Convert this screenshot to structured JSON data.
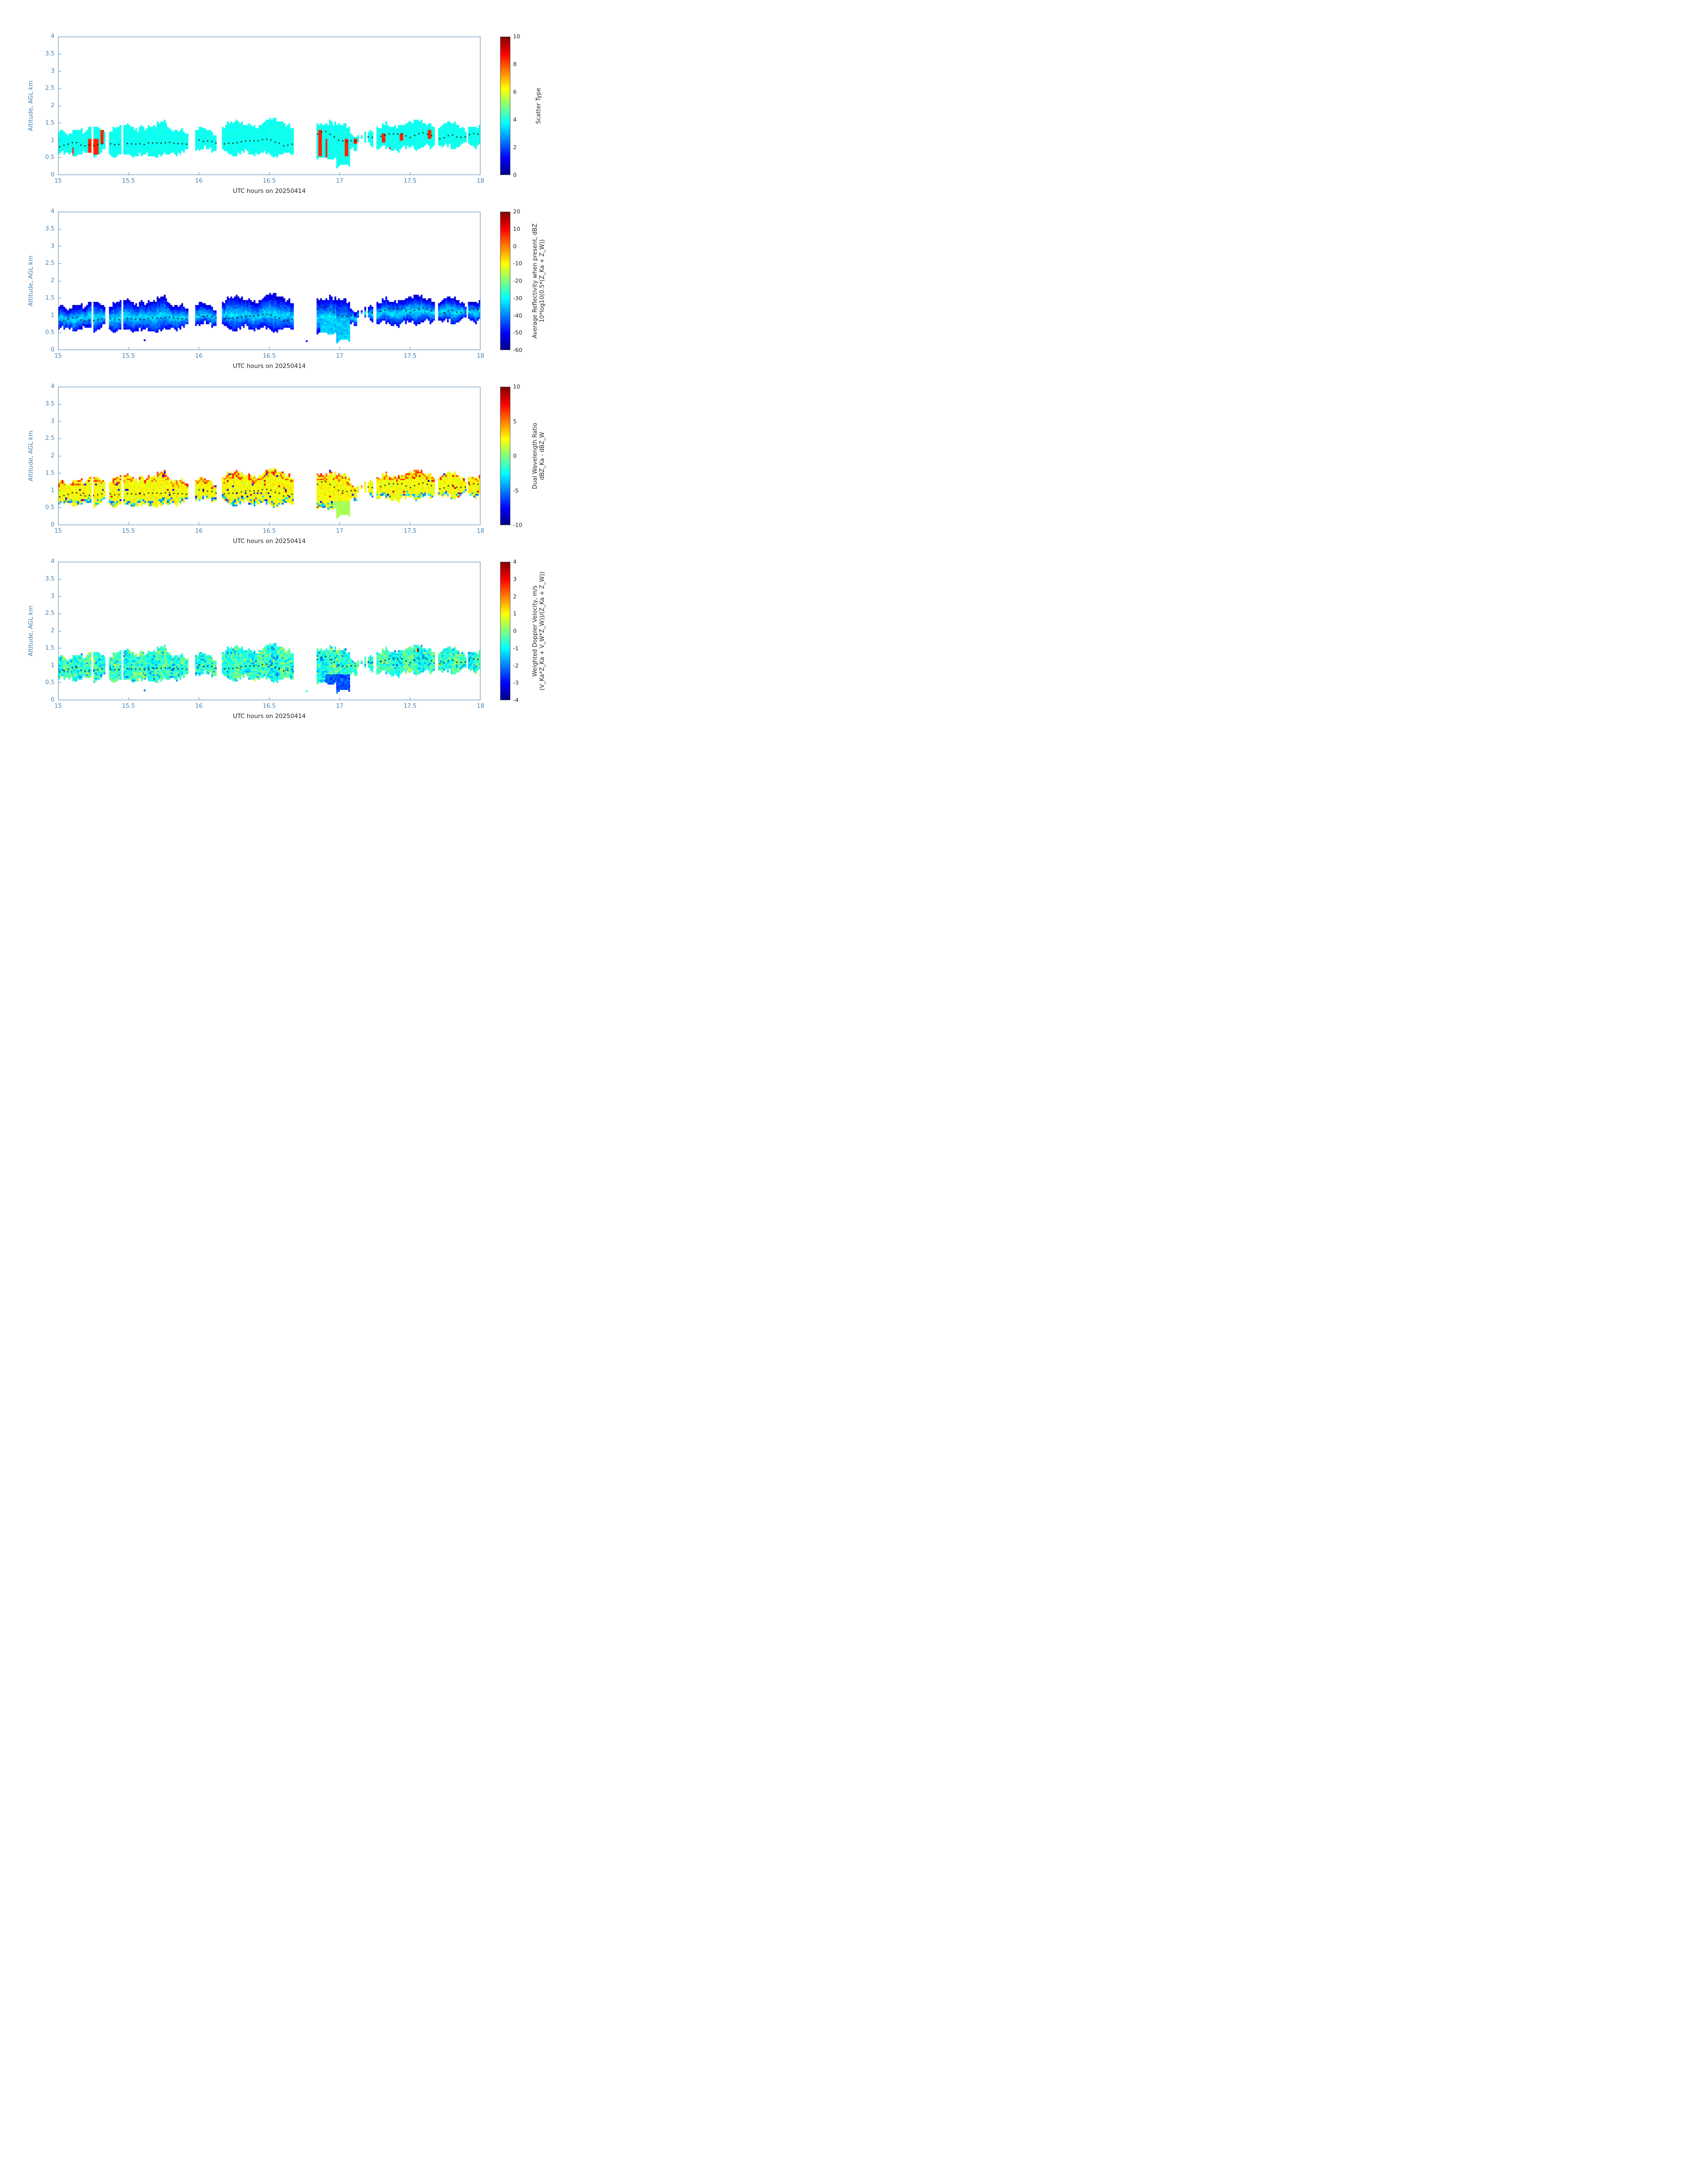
{
  "figure": {
    "axis_color": "#4682b4",
    "text_color": "#262626",
    "background": "#ffffff"
  },
  "chart_data": {
    "type": "heatmap",
    "colormap": "jet",
    "grid": false,
    "x": {
      "label": "UTC hours on 20250414",
      "range": [
        15,
        18
      ],
      "ticks": [
        15,
        15.5,
        16,
        16.5,
        17,
        17.5,
        18
      ]
    },
    "y": {
      "label": "Altitude, AGL km",
      "range": [
        0,
        4
      ],
      "ticks": [
        0,
        0.5,
        1,
        1.5,
        2,
        2.5,
        3,
        3.5,
        4
      ]
    },
    "cloud_segments": [
      [
        15.0,
        15.08,
        0.58,
        1.18
      ],
      [
        15.08,
        15.2,
        0.55,
        1.3
      ],
      [
        15.2,
        15.34,
        0.6,
        1.3
      ],
      [
        15.36,
        15.56,
        0.55,
        1.35
      ],
      [
        15.56,
        15.8,
        0.55,
        1.42
      ],
      [
        15.8,
        15.93,
        0.62,
        1.32
      ],
      [
        15.97,
        16.12,
        0.72,
        1.28
      ],
      [
        16.16,
        16.43,
        0.62,
        1.45
      ],
      [
        16.43,
        16.68,
        0.58,
        1.5
      ],
      [
        16.84,
        16.98,
        0.45,
        1.52
      ],
      [
        16.98,
        17.07,
        0.25,
        1.35
      ],
      [
        17.07,
        17.12,
        0.75,
        1.15
      ],
      [
        17.13,
        17.16,
        0.98,
        1.12
      ],
      [
        17.18,
        17.24,
        0.85,
        1.22
      ],
      [
        17.26,
        17.3,
        0.8,
        1.25
      ],
      [
        17.3,
        17.5,
        0.72,
        1.45
      ],
      [
        17.5,
        17.68,
        0.78,
        1.5
      ],
      [
        17.7,
        17.88,
        0.8,
        1.42
      ],
      [
        17.88,
        18.0,
        0.85,
        1.38
      ]
    ],
    "extra_cells": [
      {
        "t": 15.615,
        "z": 0.28,
        "values": [
          null,
          -52,
          null,
          -2.2
        ]
      },
      {
        "t": 16.765,
        "z": 0.26,
        "values": [
          null,
          -50,
          null,
          -0.8
        ]
      }
    ],
    "mean_altitude_track": [
      [
        15.0,
        0.78
      ],
      [
        15.1,
        0.95
      ],
      [
        15.2,
        0.85
      ],
      [
        15.3,
        0.9
      ],
      [
        15.4,
        0.88
      ],
      [
        15.5,
        0.92
      ],
      [
        15.6,
        0.9
      ],
      [
        15.7,
        0.92
      ],
      [
        15.8,
        0.95
      ],
      [
        15.9,
        0.9
      ],
      [
        16.0,
        1.0
      ],
      [
        16.1,
        0.95
      ],
      [
        16.2,
        0.92
      ],
      [
        16.3,
        0.95
      ],
      [
        16.4,
        1.0
      ],
      [
        16.5,
        1.02
      ],
      [
        16.55,
        0.95
      ],
      [
        16.6,
        0.85
      ],
      [
        16.65,
        0.88
      ],
      [
        16.85,
        1.2
      ],
      [
        16.9,
        1.25
      ],
      [
        16.95,
        1.1
      ],
      [
        17.0,
        1.0
      ],
      [
        17.05,
        0.95
      ],
      [
        17.1,
        1.0
      ],
      [
        17.15,
        1.05
      ],
      [
        17.2,
        1.1
      ],
      [
        17.3,
        1.1
      ],
      [
        17.35,
        1.2
      ],
      [
        17.4,
        1.15
      ],
      [
        17.45,
        1.2
      ],
      [
        17.5,
        1.1
      ],
      [
        17.55,
        1.18
      ],
      [
        17.6,
        1.22
      ],
      [
        17.65,
        1.15
      ],
      [
        17.7,
        1.05
      ],
      [
        17.75,
        1.1
      ],
      [
        17.8,
        1.15
      ],
      [
        17.85,
        1.1
      ],
      [
        17.9,
        1.12
      ],
      [
        17.95,
        1.18
      ],
      [
        18.0,
        1.2
      ]
    ],
    "panels": [
      {
        "title_lines": [
          "Scatter Type"
        ],
        "clim": [
          0,
          10
        ],
        "cticks": [
          0,
          2,
          4,
          6,
          8,
          10
        ],
        "dominant_value": 3.9,
        "anomaly_value": 8.4,
        "anomalies": [
          [
            15.095,
            15.115,
            0.6,
            0.78
          ],
          [
            15.215,
            15.285,
            0.6,
            1.05
          ],
          [
            15.305,
            15.325,
            0.9,
            1.28
          ],
          [
            16.845,
            16.875,
            0.55,
            1.3
          ],
          [
            16.895,
            16.915,
            0.5,
            1.05
          ],
          [
            17.04,
            17.06,
            0.55,
            1.05
          ],
          [
            17.095,
            17.12,
            0.9,
            1.06
          ],
          [
            17.3,
            17.325,
            0.95,
            1.18
          ],
          [
            17.335,
            17.36,
            0.6,
            0.78
          ],
          [
            17.42,
            17.445,
            1.0,
            1.2
          ],
          [
            17.62,
            17.645,
            1.05,
            1.3
          ]
        ]
      },
      {
        "title_lines": [
          "Average Reflectivity when present, dBZ",
          "10*log10(0.5*(Z_Ka + Z_W))"
        ],
        "clim": [
          -60,
          20
        ],
        "cticks": [
          -60,
          -50,
          -40,
          -30,
          -20,
          -10,
          0,
          10,
          20
        ],
        "value_range": [
          -55,
          -25
        ]
      },
      {
        "title_lines": [
          "Dual Wavelength Ratio",
          "dBZ_Ka - dBZ_W"
        ],
        "clim": [
          -10,
          10
        ],
        "cticks": [
          -10,
          -5,
          0,
          5,
          10
        ],
        "typical_value": 2.4,
        "value_range": [
          -8,
          7
        ]
      },
      {
        "title_lines": [
          "Weighted Doppler Velocity, m/s",
          "(V_Ka*Z_Ka + V_W*Z_W))/(Z_Ka + Z_W))"
        ],
        "clim": [
          -4,
          4
        ],
        "cticks": [
          -4,
          -3,
          -2,
          -1,
          0,
          1,
          2,
          3,
          4
        ],
        "typical_value": -0.6,
        "value_range": [
          -2.8,
          1
        ],
        "hot_cells": [
          [
            15.88,
            1.42
          ],
          [
            17.555,
            1.45
          ],
          [
            17.86,
            1.45
          ]
        ]
      }
    ]
  }
}
